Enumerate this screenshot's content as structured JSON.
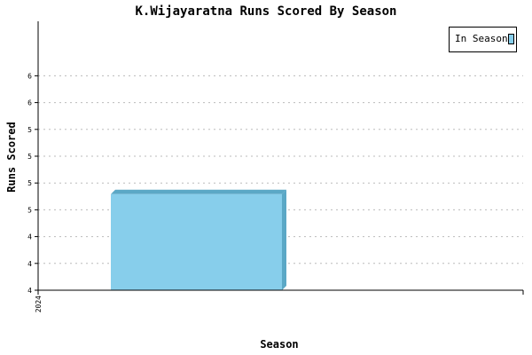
{
  "chart_data": {
    "type": "bar",
    "title": "K.Wijayaratna Runs Scored By Season",
    "xlabel": "Season",
    "ylabel": "Runs Scored",
    "categories": [
      "2024"
    ],
    "series": [
      {
        "name": "In Season",
        "values": [
          5
        ]
      }
    ],
    "ylim": [
      4,
      6.8
    ],
    "y_tick_labels": [
      "4",
      "4",
      "4",
      "5",
      "5",
      "5",
      "5",
      "6",
      "6"
    ],
    "grid": true,
    "legend_position": "top-right",
    "colors": {
      "bar": "#87ceeb",
      "bar_side": "#5ba8c6",
      "grid": "#bbbbbb",
      "axis": "#000000"
    }
  }
}
